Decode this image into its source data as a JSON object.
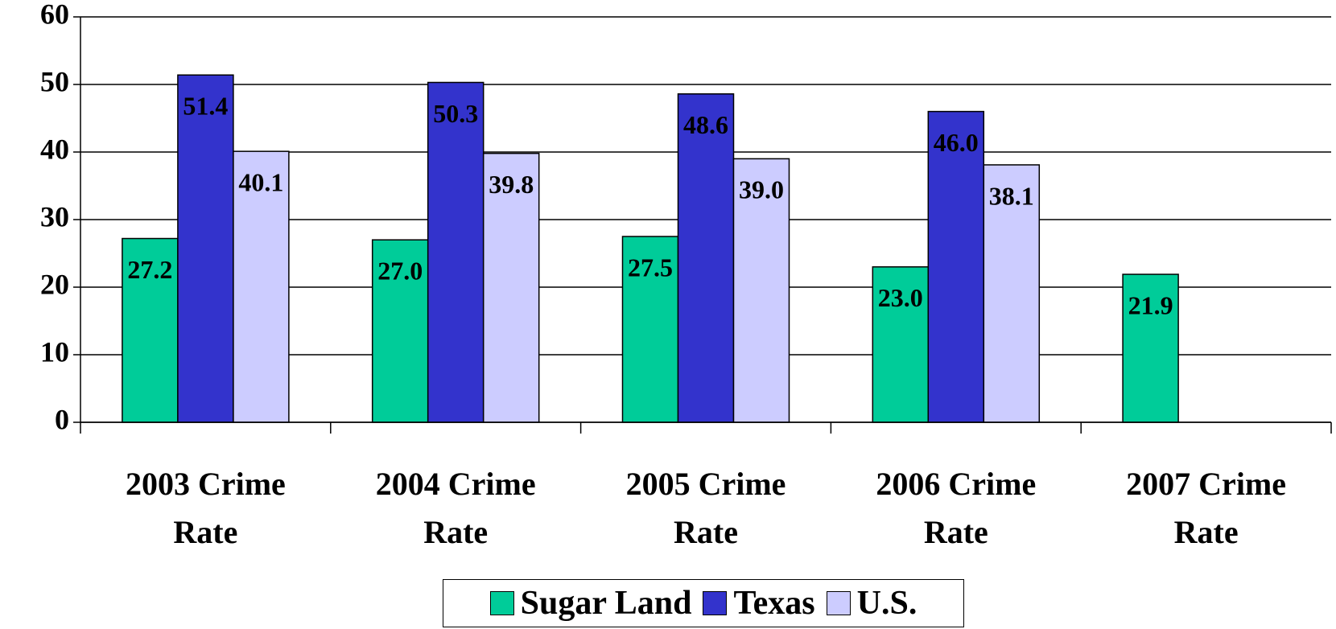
{
  "chart_data": {
    "type": "bar",
    "categories": [
      "2003 Crime Rate",
      "2004 Crime Rate",
      "2005 Crime Rate",
      "2006 Crime Rate",
      "2007 Crime Rate"
    ],
    "series": [
      {
        "name": "Sugar Land",
        "color": "#00CC99",
        "values": [
          27.2,
          27.0,
          27.5,
          23.0,
          21.9
        ],
        "value_labels": [
          "27.2",
          "27.0",
          "27.5",
          "23.0",
          "21.9"
        ]
      },
      {
        "name": "Texas",
        "color": "#3333CC",
        "values": [
          51.4,
          50.3,
          48.6,
          46.0,
          null
        ],
        "value_labels": [
          "51.4",
          "50.3",
          "48.6",
          "46.0",
          null
        ]
      },
      {
        "name": "U.S.",
        "color": "#CCCCFF",
        "values": [
          40.1,
          39.8,
          39.0,
          38.1,
          null
        ],
        "value_labels": [
          "40.1",
          "39.8",
          "39.0",
          "38.1",
          null
        ]
      }
    ],
    "ylim": [
      0,
      60
    ],
    "yticks": [
      0,
      10,
      20,
      30,
      40,
      50,
      60
    ],
    "grid": true,
    "legend": "bottom"
  }
}
